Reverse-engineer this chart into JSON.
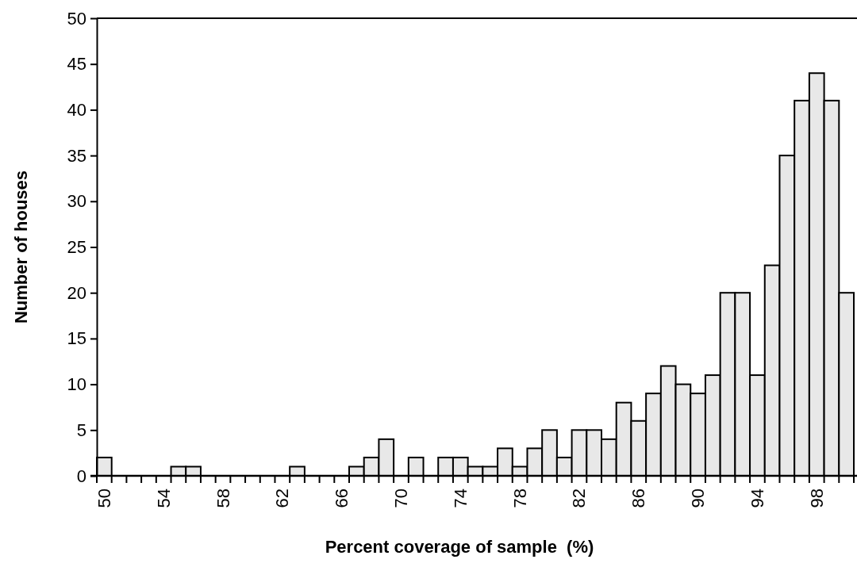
{
  "chart_data": {
    "type": "bar",
    "xlabel": "Percent coverage of sample  (%)",
    "ylabel": "Number of houses",
    "categories": [
      "50",
      null,
      null,
      null,
      "54",
      null,
      null,
      null,
      "58",
      null,
      null,
      null,
      "62",
      null,
      null,
      null,
      "66",
      null,
      null,
      null,
      "70",
      null,
      null,
      null,
      "74",
      null,
      null,
      null,
      "78",
      null,
      null,
      null,
      "82",
      null,
      null,
      null,
      "86",
      null,
      null,
      null,
      "90",
      null,
      null,
      null,
      "94",
      null,
      null,
      null,
      "98",
      null,
      null
    ],
    "values": [
      2,
      0,
      0,
      0,
      0,
      1,
      1,
      0,
      0,
      0,
      0,
      0,
      0,
      1,
      0,
      0,
      0,
      1,
      2,
      4,
      0,
      2,
      0,
      2,
      2,
      1,
      1,
      3,
      1,
      3,
      5,
      2,
      5,
      5,
      4,
      8,
      6,
      9,
      12,
      10,
      9,
      11,
      20,
      20,
      11,
      23,
      35,
      41,
      44,
      41,
      20
    ],
    "color": "#e8e8e8",
    "ylim": [
      0,
      50
    ],
    "yticks": [
      0,
      5,
      10,
      15,
      20,
      25,
      30,
      35,
      40,
      45,
      50
    ],
    "grid": false
  }
}
